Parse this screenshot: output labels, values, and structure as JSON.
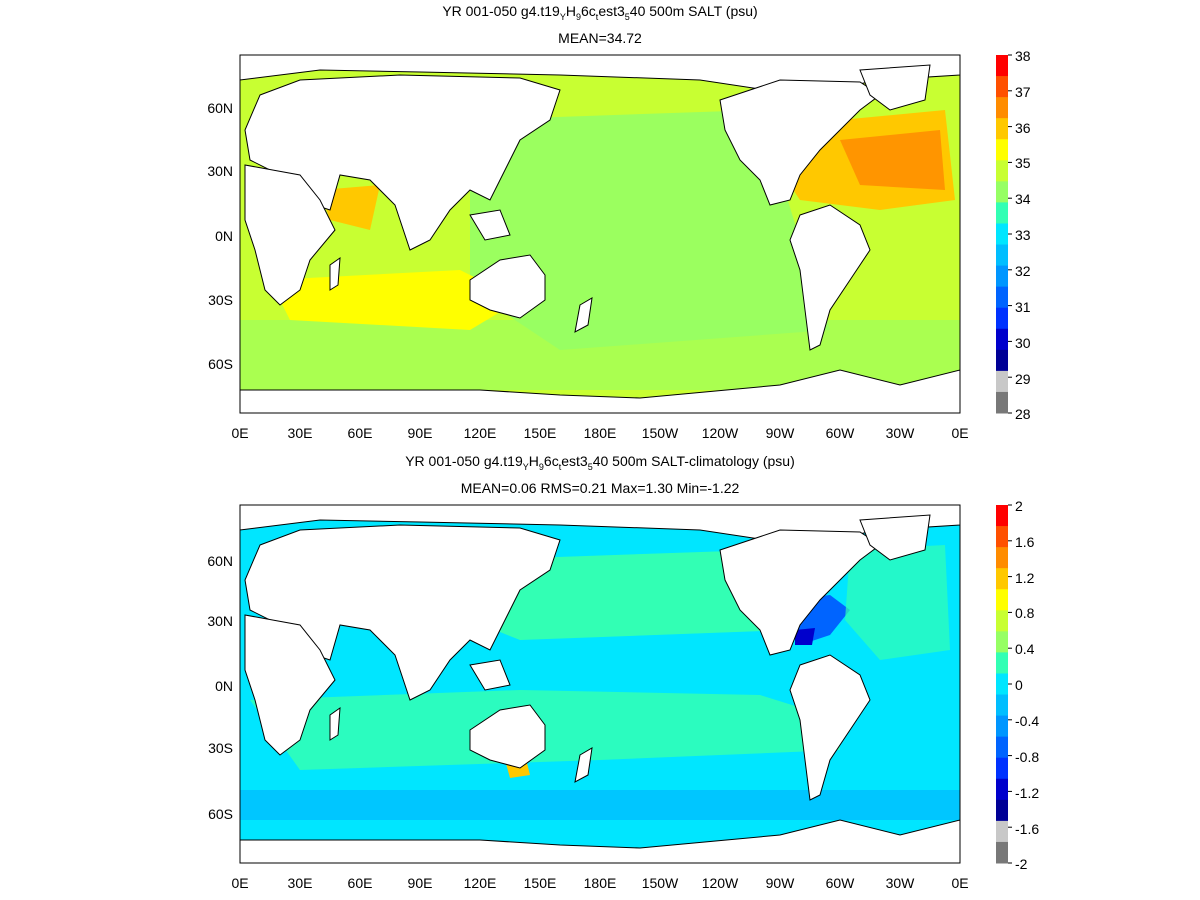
{
  "panels": [
    {
      "title_pre": "YR 001-050 g4.t19",
      "title_sub1": "Y",
      "title_mid1": "H",
      "title_sub2": "9",
      "title_mid2": "6c",
      "title_sub3": "t",
      "title_mid3": "est3",
      "title_sub4": "5",
      "title_post": "40 500m SALT (psu)",
      "stats": "MEAN=34.72",
      "lat_labels": [
        "60N",
        "30N",
        "0N",
        "30S",
        "60S"
      ],
      "lon_labels": [
        "0E",
        "30E",
        "60E",
        "90E",
        "120E",
        "150E",
        "180E",
        "150W",
        "120W",
        "90W",
        "60W",
        "30W",
        "0E"
      ],
      "colorbar_labels": [
        "38",
        "37",
        "36",
        "35",
        "34",
        "33",
        "32",
        "31",
        "30",
        "29",
        "28"
      ],
      "colorbar_colors": [
        "#ff0000",
        "#ff5000",
        "#ff8c00",
        "#ffc800",
        "#ffff00",
        "#c8ff32",
        "#96ff64",
        "#32ffb4",
        "#00e6ff",
        "#00beff",
        "#0096ff",
        "#0064ff",
        "#0032ff",
        "#0000cc",
        "#000096",
        "#c8c8c8",
        "#787878"
      ],
      "ocean_color": "#c8ff32"
    },
    {
      "title_pre": "YR 001-050 g4.t19",
      "title_sub1": "Y",
      "title_mid1": "H",
      "title_sub2": "9",
      "title_mid2": "6c",
      "title_sub3": "t",
      "title_mid3": "est3",
      "title_sub4": "5",
      "title_post": "40 500m SALT-climatology (psu)",
      "stats": "MEAN=0.06   RMS=0.21   Max=1.30   Min=-1.22",
      "lat_labels": [
        "60N",
        "30N",
        "0N",
        "30S",
        "60S"
      ],
      "lon_labels": [
        "0E",
        "30E",
        "60E",
        "90E",
        "120E",
        "150E",
        "180E",
        "150W",
        "120W",
        "90W",
        "60W",
        "30W",
        "0E"
      ],
      "colorbar_labels": [
        "2",
        "1.6",
        "1.2",
        "0.8",
        "0.4",
        "0",
        "-0.4",
        "-0.8",
        "-1.2",
        "-1.6",
        "-2"
      ],
      "colorbar_colors": [
        "#ff0000",
        "#ff5000",
        "#ff8c00",
        "#ffc800",
        "#ffff00",
        "#c8ff32",
        "#96ff64",
        "#32ffb4",
        "#00e6ff",
        "#00beff",
        "#0096ff",
        "#0064ff",
        "#0032ff",
        "#0000cc",
        "#000096",
        "#c8c8c8",
        "#787878"
      ],
      "ocean_color": "#00ffff"
    }
  ]
}
